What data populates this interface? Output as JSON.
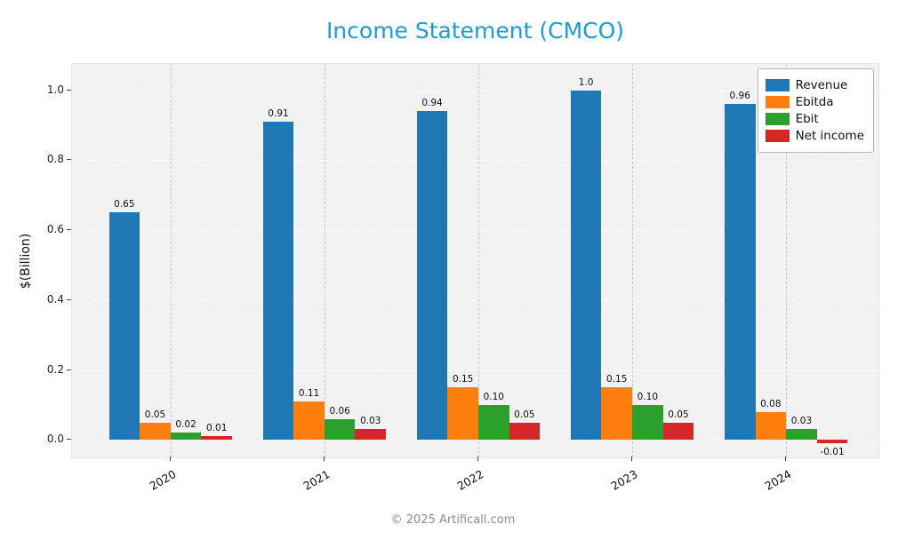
{
  "footer": "© 2025 Artificall.com",
  "chart_data": {
    "type": "bar",
    "title": "Income Statement (CMCO)",
    "title_color": "#1a9cd8",
    "xlabel": "",
    "ylabel": "$(Billion)",
    "plot_background": "#f2f2f3",
    "grid": "horizontal white dashed lines + vertical gray dashed lines at group centers",
    "legend_position": "upper right",
    "categories": [
      "2020",
      "2021",
      "2022",
      "2023",
      "2024"
    ],
    "series": [
      {
        "name": "Revenue",
        "color": "#1f77b4",
        "values": [
          0.65,
          0.91,
          0.94,
          1.0,
          0.96
        ],
        "labels": [
          "0.65",
          "0.91",
          "0.94",
          "1.0",
          "0.96"
        ]
      },
      {
        "name": "Ebitda",
        "color": "#ff7f0e",
        "values": [
          0.05,
          0.11,
          0.15,
          0.15,
          0.08
        ],
        "labels": [
          "0.05",
          "0.11",
          "0.15",
          "0.15",
          "0.08"
        ]
      },
      {
        "name": "Ebit",
        "color": "#2ca02c",
        "values": [
          0.02,
          0.06,
          0.1,
          0.1,
          0.03
        ],
        "labels": [
          "0.02",
          "0.06",
          "0.10",
          "0.10",
          "0.03"
        ]
      },
      {
        "name": "Net income",
        "color": "#d62728",
        "values": [
          0.01,
          0.03,
          0.05,
          0.05,
          -0.01
        ],
        "labels": [
          "0.01",
          "0.03",
          "0.05",
          "0.05",
          "-0.01"
        ]
      }
    ],
    "yticks": [
      0.0,
      0.2,
      0.4,
      0.6,
      0.8,
      1.0
    ],
    "ytick_labels": [
      "0.0",
      "0.2",
      "0.4",
      "0.6",
      "0.8",
      "1.0"
    ],
    "ylim": [
      -0.05,
      1.075
    ],
    "xlim": [
      -0.64,
      4.6
    ],
    "bar_width": 0.2
  }
}
